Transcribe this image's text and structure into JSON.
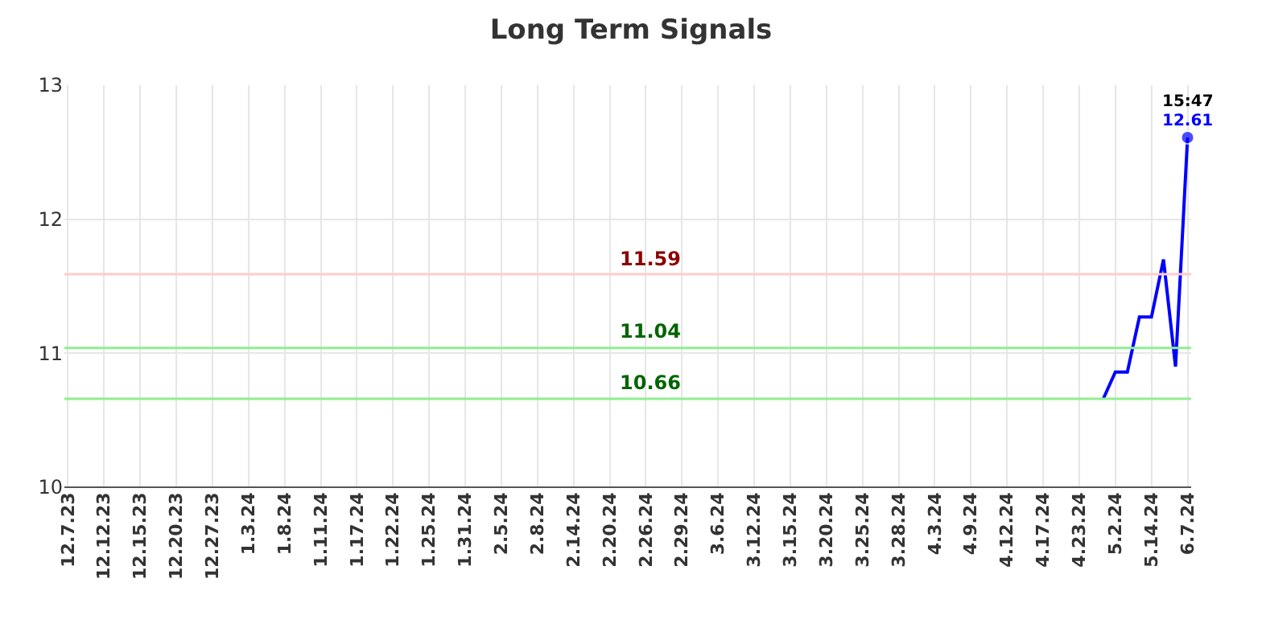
{
  "chart_data": {
    "type": "line",
    "title": "Long Term Signals",
    "categories": [
      "12.7.23",
      null,
      null,
      "12.12.23",
      null,
      null,
      "12.15.23",
      null,
      null,
      "12.20.23",
      null,
      null,
      "12.27.23",
      null,
      null,
      "1.3.24",
      null,
      null,
      "1.8.24",
      null,
      null,
      "1.11.24",
      null,
      null,
      "1.17.24",
      null,
      null,
      "1.22.24",
      null,
      null,
      "1.25.24",
      null,
      null,
      "1.31.24",
      null,
      null,
      "2.5.24",
      null,
      null,
      "2.8.24",
      null,
      null,
      "2.14.24",
      null,
      null,
      "2.20.24",
      null,
      null,
      "2.26.24",
      null,
      null,
      "2.29.24",
      null,
      null,
      "3.6.24",
      null,
      null,
      "3.12.24",
      null,
      null,
      "3.15.24",
      null,
      null,
      "3.20.24",
      null,
      null,
      "3.25.24",
      null,
      null,
      "3.28.24",
      null,
      null,
      "4.3.24",
      null,
      null,
      "4.9.24",
      null,
      null,
      "4.12.24",
      null,
      null,
      "4.17.24",
      null,
      null,
      "4.23.24",
      null,
      null,
      "5.2.24",
      null,
      null,
      "5.14.24",
      null,
      null,
      "6.7.24"
    ],
    "series": [
      {
        "color": "#0000ff",
        "values": [
          null,
          null,
          null,
          null,
          null,
          null,
          null,
          null,
          null,
          null,
          null,
          null,
          null,
          null,
          null,
          null,
          null,
          null,
          null,
          null,
          null,
          null,
          null,
          null,
          null,
          null,
          null,
          null,
          null,
          null,
          null,
          null,
          null,
          null,
          null,
          null,
          null,
          null,
          null,
          null,
          null,
          null,
          null,
          null,
          null,
          null,
          null,
          null,
          null,
          null,
          null,
          null,
          null,
          null,
          null,
          null,
          null,
          null,
          null,
          null,
          null,
          null,
          null,
          null,
          null,
          null,
          null,
          null,
          null,
          null,
          null,
          null,
          null,
          null,
          null,
          null,
          null,
          null,
          null,
          null,
          null,
          null,
          null,
          null,
          null,
          null,
          10.66,
          10.86,
          10.86,
          11.27,
          11.27,
          11.7,
          10.9,
          12.61
        ],
        "value_labels": [
          null,
          null,
          null,
          null,
          null,
          null,
          null,
          null,
          null,
          null,
          null,
          null,
          null,
          null,
          null,
          null,
          null,
          null,
          null,
          null,
          null,
          null,
          null,
          null,
          null,
          null,
          null,
          null,
          null,
          null,
          null,
          null,
          null,
          null,
          null,
          null,
          null,
          null,
          null,
          null,
          null,
          null,
          null,
          null,
          null,
          null,
          null,
          null,
          null,
          null,
          null,
          null,
          null,
          null,
          null,
          null,
          null,
          null,
          null,
          null,
          null,
          null,
          null,
          null,
          null,
          null,
          null,
          null,
          null,
          null,
          null,
          null,
          null,
          null,
          null,
          null,
          null,
          null,
          null,
          null,
          null,
          null,
          null,
          null,
          null,
          null,
          null,
          null,
          null,
          null,
          null,
          null,
          null,
          "12.61"
        ]
      }
    ],
    "ylim": [
      10,
      13
    ],
    "yticks": [
      10,
      11,
      12,
      13
    ],
    "grid": true,
    "ref_lines": [
      {
        "axis": "y",
        "value": 11.59,
        "label": "11.59",
        "color": "#ffcccc"
      },
      {
        "axis": "y",
        "value": 11.04,
        "label": "11.04",
        "color": "#90ee90"
      },
      {
        "axis": "y",
        "value": 10.66,
        "label": "10.66",
        "color": "#90ee90"
      }
    ],
    "annotations": [
      {
        "text": "15:47",
        "x": "6.7.24",
        "y": 12.61
      }
    ]
  }
}
